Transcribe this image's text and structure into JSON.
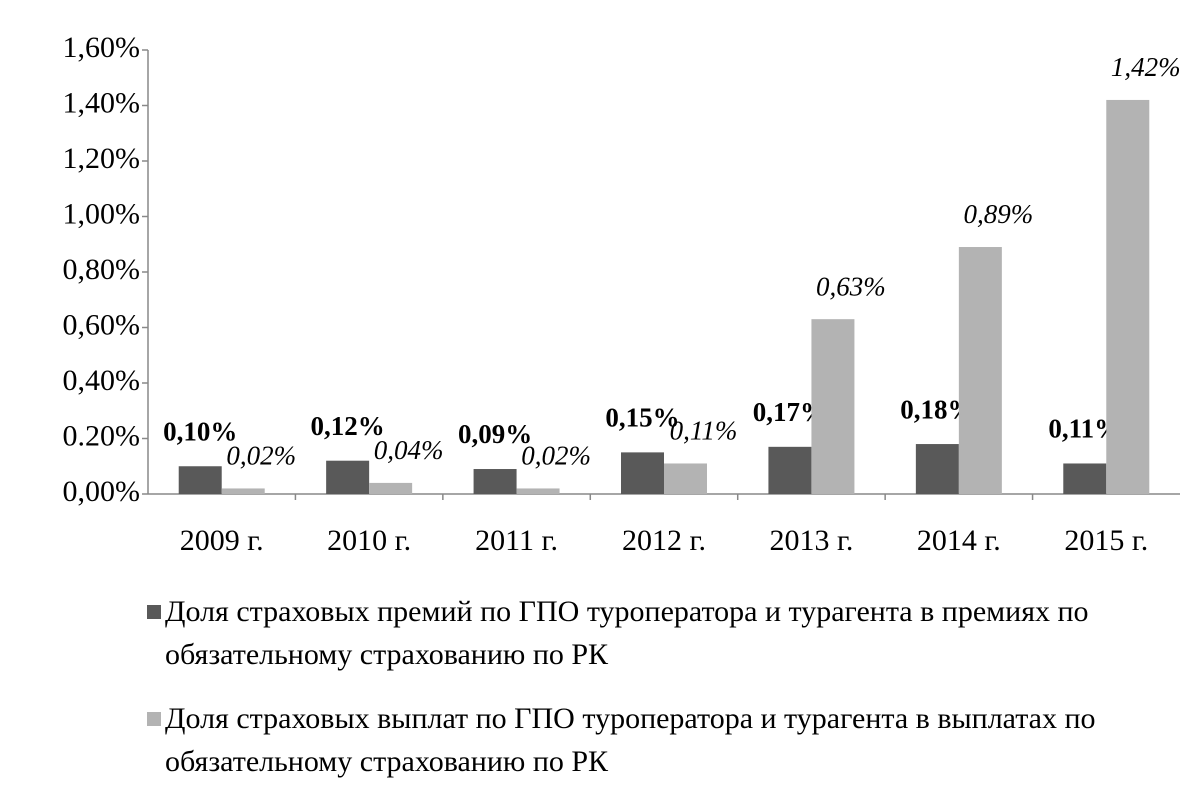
{
  "chart_data": {
    "type": "bar",
    "categories": [
      "2009 г.",
      "2010 г.",
      "2011 г.",
      "2012 г.",
      "2013 г.",
      "2014 г.",
      "2015 г."
    ],
    "series": [
      {
        "name": "Доля страховых премий по ГПО туроператора и турагента в премиях по обязательному страхованию по РК",
        "color": "#595959",
        "values": [
          0.1,
          0.12,
          0.09,
          0.15,
          0.17,
          0.18,
          0.11
        ],
        "value_labels": [
          "0,10%",
          "0,12%",
          "0,09%",
          "0,15%",
          "0,17%",
          "0,18%",
          "0,11%"
        ]
      },
      {
        "name": "Доля страховых выплат  по ГПО туроператора и турагента в выплатах по обязательному страхованию по РК",
        "color": "#b3b3b3",
        "values": [
          0.02,
          0.04,
          0.02,
          0.11,
          0.63,
          0.89,
          1.42
        ],
        "value_labels": [
          "0,02%",
          "0,04%",
          "0,02%",
          "0,11%",
          "0,63%",
          "0,89%",
          "1,42%"
        ]
      }
    ],
    "ylim": [
      0,
      1.6
    ],
    "yticks": [
      {
        "value": 0,
        "label": "0,00%"
      },
      {
        "value": 0.2,
        "label": "0.20%"
      },
      {
        "value": 0.4,
        "label": "0,40%"
      },
      {
        "value": 0.6,
        "label": "0,60%"
      },
      {
        "value": 0.8,
        "label": "0,80%"
      },
      {
        "value": 1.0,
        "label": "1,00%"
      },
      {
        "value": 1.2,
        "label": "1,20%"
      },
      {
        "value": 1.4,
        "label": "1,40%"
      },
      {
        "value": 1.6,
        "label": "1,60%"
      }
    ],
    "grid": false
  }
}
